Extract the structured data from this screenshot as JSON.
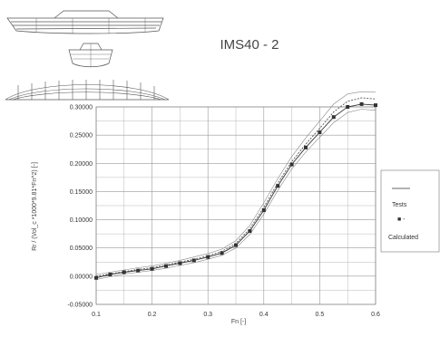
{
  "chart_data": {
    "type": "line",
    "title": "IMS40 - 2",
    "xlabel": "Fn [-]",
    "ylabel": "Rr / (Vol_c *1000*9.81*Fn^2) [-]",
    "xlim": [
      0.1,
      0.6
    ],
    "ylim": [
      -0.05,
      0.3
    ],
    "x_ticks": [
      "0.1",
      "0.2",
      "0.3",
      "0.4",
      "0.5",
      "0.6"
    ],
    "y_ticks": [
      "0.30000",
      "0.25000",
      "0.20000",
      "0.15000",
      "0.10000",
      "0.05000",
      "0.00000",
      "-0.05000"
    ],
    "grid": true,
    "legend_position": "right",
    "series": [
      {
        "name": "Tests",
        "marker": "square",
        "x": [
          0.1,
          0.125,
          0.15,
          0.175,
          0.2,
          0.225,
          0.25,
          0.275,
          0.3,
          0.325,
          0.35,
          0.375,
          0.4,
          0.425,
          0.45,
          0.475,
          0.5,
          0.525,
          0.55,
          0.575,
          0.6
        ],
        "values": [
          -0.003,
          0.003,
          0.007,
          0.01,
          0.013,
          0.018,
          0.023,
          0.028,
          0.034,
          0.041,
          0.055,
          0.08,
          0.117,
          0.16,
          0.198,
          0.228,
          0.255,
          0.282,
          0.3,
          0.305,
          0.303
        ]
      },
      {
        "name": "Calculated",
        "marker": "none",
        "x": [
          0.1,
          0.125,
          0.15,
          0.175,
          0.2,
          0.225,
          0.25,
          0.275,
          0.3,
          0.325,
          0.35,
          0.375,
          0.4,
          0.425,
          0.45,
          0.475,
          0.5,
          0.525,
          0.55,
          0.575,
          0.6
        ],
        "values": [
          0.0,
          0.004,
          0.008,
          0.012,
          0.015,
          0.02,
          0.025,
          0.03,
          0.036,
          0.044,
          0.058,
          0.084,
          0.122,
          0.165,
          0.203,
          0.234,
          0.262,
          0.291,
          0.31,
          0.316,
          0.314
        ]
      }
    ],
    "band_lines": [
      {
        "values": [
          0.003,
          0.007,
          0.011,
          0.015,
          0.018,
          0.023,
          0.028,
          0.034,
          0.04,
          0.048,
          0.063,
          0.09,
          0.13,
          0.173,
          0.212,
          0.245,
          0.275,
          0.305,
          0.323,
          0.327,
          0.326
        ]
      },
      {
        "values": [
          -0.006,
          -0.001,
          0.004,
          0.007,
          0.01,
          0.014,
          0.019,
          0.024,
          0.03,
          0.037,
          0.05,
          0.074,
          0.11,
          0.152,
          0.19,
          0.22,
          0.246,
          0.272,
          0.29,
          0.296,
          0.294
        ]
      }
    ]
  },
  "legend": {
    "tests_label": "Tests",
    "tests_marker": "■ -",
    "calculated_label": "Calculated"
  },
  "colors": {
    "tests": "#333333",
    "calculated": "#555555",
    "band": "#888888",
    "grid": "#999999",
    "ship": "#555555"
  }
}
